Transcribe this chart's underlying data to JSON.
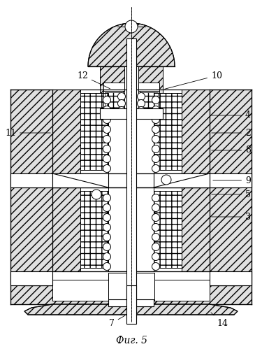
{
  "title": "Фиг. 5",
  "bg_color": "#ffffff",
  "fig_width": 3.75,
  "fig_height": 4.99,
  "dpi": 100
}
